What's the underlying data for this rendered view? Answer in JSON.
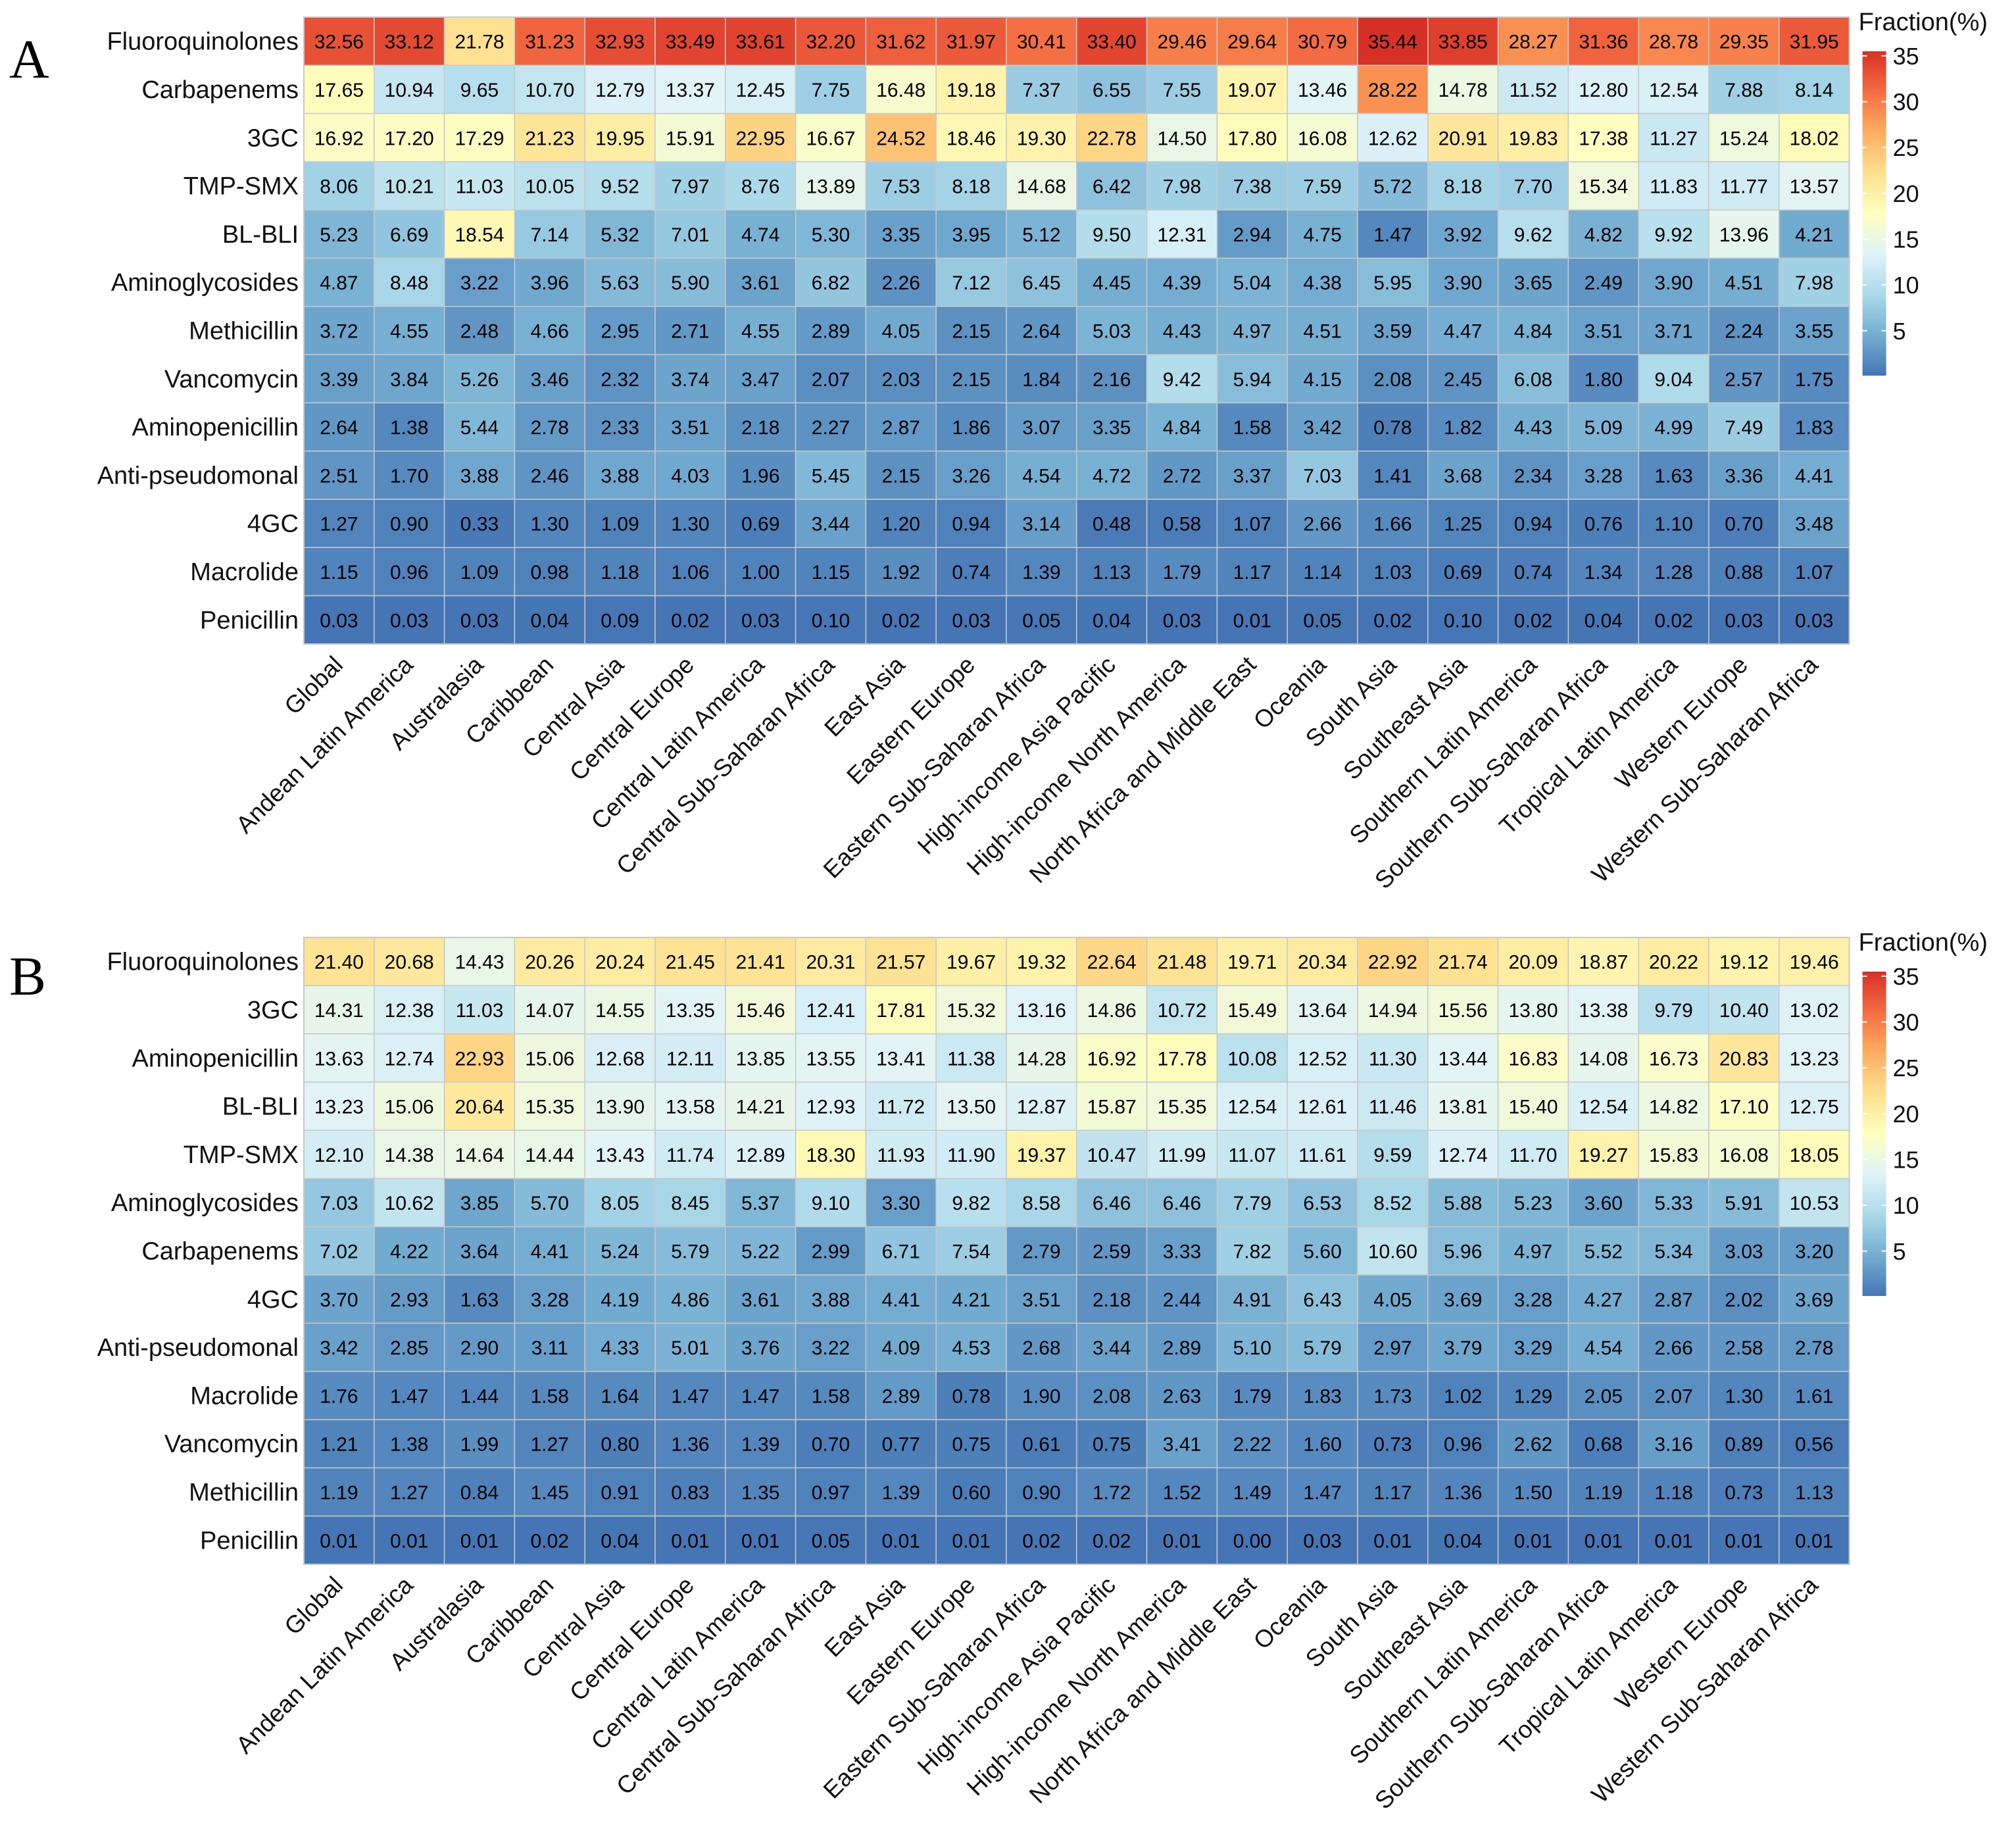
{
  "chart_data": [
    {
      "type": "heatmap",
      "panel": "A",
      "title": "",
      "legend_title": "Fraction(%)",
      "legend_ticks": [
        35,
        30,
        25,
        20,
        15,
        10,
        5
      ],
      "color_range": [
        0,
        35
      ],
      "rows": [
        "Fluoroquinolones",
        "Carbapenems",
        "3GC",
        "TMP-SMX",
        "BL-BLI",
        "Aminoglycosides",
        "Methicillin",
        "Vancomycin",
        "Aminopenicillin",
        "Anti-pseudomonal",
        "4GC",
        "Macrolide",
        "Penicillin"
      ],
      "columns": [
        "Global",
        "Andean Latin America",
        "Australasia",
        "Caribbean",
        "Central Asia",
        "Central Europe",
        "Central Latin America",
        "Central Sub-Saharan Africa",
        "East Asia",
        "Eastern Europe",
        "Eastern Sub-Saharan Africa",
        "High-income Asia Pacific",
        "High-income North America",
        "North Africa and Middle East",
        "Oceania",
        "South Asia",
        "Southeast Asia",
        "Southern Latin America",
        "Southern Sub-Saharan Africa",
        "Tropical Latin America",
        "Western Europe",
        "Western Sub-Saharan Africa"
      ],
      "values": [
        [
          "32.56",
          "33.12",
          "21.78",
          "31.23",
          "32.93",
          "33.49",
          "33.61",
          "32.20",
          "31.62",
          "31.97",
          "30.41",
          "33.40",
          "29.46",
          "29.64",
          "30.79",
          "35.44",
          "33.85",
          "28.27",
          "31.36",
          "28.78",
          "29.35",
          "31.95"
        ],
        [
          "17.65",
          "10.94",
          "9.65",
          "10.70",
          "12.79",
          "13.37",
          "12.45",
          "7.75",
          "16.48",
          "19.18",
          "7.37",
          "6.55",
          "7.55",
          "19.07",
          "13.46",
          "28.22",
          "14.78",
          "11.52",
          "12.80",
          "12.54",
          "7.88",
          "8.14"
        ],
        [
          "16.92",
          "17.20",
          "17.29",
          "21.23",
          "19.95",
          "15.91",
          "22.95",
          "16.67",
          "24.52",
          "18.46",
          "19.30",
          "22.78",
          "14.50",
          "17.80",
          "16.08",
          "12.62",
          "20.91",
          "19.83",
          "17.38",
          "11.27",
          "15.24",
          "18.02"
        ],
        [
          "8.06",
          "10.21",
          "11.03",
          "10.05",
          "9.52",
          "7.97",
          "8.76",
          "13.89",
          "7.53",
          "8.18",
          "14.68",
          "6.42",
          "7.98",
          "7.38",
          "7.59",
          "5.72",
          "8.18",
          "7.70",
          "15.34",
          "11.83",
          "11.77",
          "13.57"
        ],
        [
          "5.23",
          "6.69",
          "18.54",
          "7.14",
          "5.32",
          "7.01",
          "4.74",
          "5.30",
          "3.35",
          "3.95",
          "5.12",
          "9.50",
          "12.31",
          "2.94",
          "4.75",
          "1.47",
          "3.92",
          "9.62",
          "4.82",
          "9.92",
          "13.96",
          "4.21"
        ],
        [
          "4.87",
          "8.48",
          "3.22",
          "3.96",
          "5.63",
          "5.90",
          "3.61",
          "6.82",
          "2.26",
          "7.12",
          "6.45",
          "4.45",
          "4.39",
          "5.04",
          "4.38",
          "5.95",
          "3.90",
          "3.65",
          "2.49",
          "3.90",
          "4.51",
          "7.98"
        ],
        [
          "3.72",
          "4.55",
          "2.48",
          "4.66",
          "2.95",
          "2.71",
          "4.55",
          "2.89",
          "4.05",
          "2.15",
          "2.64",
          "5.03",
          "4.43",
          "4.97",
          "4.51",
          "3.59",
          "4.47",
          "4.84",
          "3.51",
          "3.71",
          "2.24",
          "3.55"
        ],
        [
          "3.39",
          "3.84",
          "5.26",
          "3.46",
          "2.32",
          "3.74",
          "3.47",
          "2.07",
          "2.03",
          "2.15",
          "1.84",
          "2.16",
          "9.42",
          "5.94",
          "4.15",
          "2.08",
          "2.45",
          "6.08",
          "1.80",
          "9.04",
          "2.57",
          "1.75"
        ],
        [
          "2.64",
          "1.38",
          "5.44",
          "2.78",
          "2.33",
          "3.51",
          "2.18",
          "2.27",
          "2.87",
          "1.86",
          "3.07",
          "3.35",
          "4.84",
          "1.58",
          "3.42",
          "0.78",
          "1.82",
          "4.43",
          "5.09",
          "4.99",
          "7.49",
          "1.83"
        ],
        [
          "2.51",
          "1.70",
          "3.88",
          "2.46",
          "3.88",
          "4.03",
          "1.96",
          "5.45",
          "2.15",
          "3.26",
          "4.54",
          "4.72",
          "2.72",
          "3.37",
          "7.03",
          "1.41",
          "3.68",
          "2.34",
          "3.28",
          "1.63",
          "3.36",
          "4.41"
        ],
        [
          "1.27",
          "0.90",
          "0.33",
          "1.30",
          "1.09",
          "1.30",
          "0.69",
          "3.44",
          "1.20",
          "0.94",
          "3.14",
          "0.48",
          "0.58",
          "1.07",
          "2.66",
          "1.66",
          "1.25",
          "0.94",
          "0.76",
          "1.10",
          "0.70",
          "3.48"
        ],
        [
          "1.15",
          "0.96",
          "1.09",
          "0.98",
          "1.18",
          "1.06",
          "1.00",
          "1.15",
          "1.92",
          "0.74",
          "1.39",
          "1.13",
          "1.79",
          "1.17",
          "1.14",
          "1.03",
          "0.69",
          "0.74",
          "1.34",
          "1.28",
          "0.88",
          "1.07"
        ],
        [
          "0.03",
          "0.03",
          "0.03",
          "0.04",
          "0.09",
          "0.02",
          "0.03",
          "0.10",
          "0.02",
          "0.03",
          "0.05",
          "0.04",
          "0.03",
          "0.01",
          "0.05",
          "0.02",
          "0.10",
          "0.02",
          "0.04",
          "0.02",
          "0.03",
          "0.03"
        ]
      ]
    },
    {
      "type": "heatmap",
      "panel": "B",
      "title": "",
      "legend_title": "Fraction(%)",
      "legend_ticks": [
        35,
        30,
        25,
        20,
        15,
        10,
        5
      ],
      "color_range": [
        0,
        35
      ],
      "rows": [
        "Fluoroquinolones",
        "3GC",
        "Aminopenicillin",
        "BL-BLI",
        "TMP-SMX",
        "Aminoglycosides",
        "Carbapenems",
        "4GC",
        "Anti-pseudomonal",
        "Macrolide",
        "Vancomycin",
        "Methicillin",
        "Penicillin"
      ],
      "columns": [
        "Global",
        "Andean Latin America",
        "Australasia",
        "Caribbean",
        "Central Asia",
        "Central Europe",
        "Central Latin America",
        "Central Sub-Saharan Africa",
        "East Asia",
        "Eastern Europe",
        "Eastern Sub-Saharan Africa",
        "High-income Asia Pacific",
        "High-income North America",
        "North Africa and Middle East",
        "Oceania",
        "South Asia",
        "Southeast Asia",
        "Southern Latin America",
        "Southern Sub-Saharan Africa",
        "Tropical Latin America",
        "Western Europe",
        "Western Sub-Saharan Africa"
      ],
      "values": [
        [
          "21.40",
          "20.68",
          "14.43",
          "20.26",
          "20.24",
          "21.45",
          "21.41",
          "20.31",
          "21.57",
          "19.67",
          "19.32",
          "22.64",
          "21.48",
          "19.71",
          "20.34",
          "22.92",
          "21.74",
          "20.09",
          "18.87",
          "20.22",
          "19.12",
          "19.46"
        ],
        [
          "14.31",
          "12.38",
          "11.03",
          "14.07",
          "14.55",
          "13.35",
          "15.46",
          "12.41",
          "17.81",
          "15.32",
          "13.16",
          "14.86",
          "10.72",
          "15.49",
          "13.64",
          "14.94",
          "15.56",
          "13.80",
          "13.38",
          "9.79",
          "10.40",
          "13.02"
        ],
        [
          "13.63",
          "12.74",
          "22.93",
          "15.06",
          "12.68",
          "12.11",
          "13.85",
          "13.55",
          "13.41",
          "11.38",
          "14.28",
          "16.92",
          "17.78",
          "10.08",
          "12.52",
          "11.30",
          "13.44",
          "16.83",
          "14.08",
          "16.73",
          "20.83",
          "13.23"
        ],
        [
          "13.23",
          "15.06",
          "20.64",
          "15.35",
          "13.90",
          "13.58",
          "14.21",
          "12.93",
          "11.72",
          "13.50",
          "12.87",
          "15.87",
          "15.35",
          "12.54",
          "12.61",
          "11.46",
          "13.81",
          "15.40",
          "12.54",
          "14.82",
          "17.10",
          "12.75"
        ],
        [
          "12.10",
          "14.38",
          "14.64",
          "14.44",
          "13.43",
          "11.74",
          "12.89",
          "18.30",
          "11.93",
          "11.90",
          "19.37",
          "10.47",
          "11.99",
          "11.07",
          "11.61",
          "9.59",
          "12.74",
          "11.70",
          "19.27",
          "15.83",
          "16.08",
          "18.05"
        ],
        [
          "7.03",
          "10.62",
          "3.85",
          "5.70",
          "8.05",
          "8.45",
          "5.37",
          "9.10",
          "3.30",
          "9.82",
          "8.58",
          "6.46",
          "6.46",
          "7.79",
          "6.53",
          "8.52",
          "5.88",
          "5.23",
          "3.60",
          "5.33",
          "5.91",
          "10.53"
        ],
        [
          "7.02",
          "4.22",
          "3.64",
          "4.41",
          "5.24",
          "5.79",
          "5.22",
          "2.99",
          "6.71",
          "7.54",
          "2.79",
          "2.59",
          "3.33",
          "7.82",
          "5.60",
          "10.60",
          "5.96",
          "4.97",
          "5.52",
          "5.34",
          "3.03",
          "3.20"
        ],
        [
          "3.70",
          "2.93",
          "1.63",
          "3.28",
          "4.19",
          "4.86",
          "3.61",
          "3.88",
          "4.41",
          "4.21",
          "3.51",
          "2.18",
          "2.44",
          "4.91",
          "6.43",
          "4.05",
          "3.69",
          "3.28",
          "4.27",
          "2.87",
          "2.02",
          "3.69"
        ],
        [
          "3.42",
          "2.85",
          "2.90",
          "3.11",
          "4.33",
          "5.01",
          "3.76",
          "3.22",
          "4.09",
          "4.53",
          "2.68",
          "3.44",
          "2.89",
          "5.10",
          "5.79",
          "2.97",
          "3.79",
          "3.29",
          "4.54",
          "2.66",
          "2.58",
          "2.78"
        ],
        [
          "1.76",
          "1.47",
          "1.44",
          "1.58",
          "1.64",
          "1.47",
          "1.47",
          "1.58",
          "2.89",
          "0.78",
          "1.90",
          "2.08",
          "2.63",
          "1.79",
          "1.83",
          "1.73",
          "1.02",
          "1.29",
          "2.05",
          "2.07",
          "1.30",
          "1.61"
        ],
        [
          "1.21",
          "1.38",
          "1.99",
          "1.27",
          "0.80",
          "1.36",
          "1.39",
          "0.70",
          "0.77",
          "0.75",
          "0.61",
          "0.75",
          "3.41",
          "2.22",
          "1.60",
          "0.73",
          "0.96",
          "2.62",
          "0.68",
          "3.16",
          "0.89",
          "0.56"
        ],
        [
          "1.19",
          "1.27",
          "0.84",
          "1.45",
          "0.91",
          "0.83",
          "1.35",
          "0.97",
          "1.39",
          "0.60",
          "0.90",
          "1.72",
          "1.52",
          "1.49",
          "1.47",
          "1.17",
          "1.36",
          "1.50",
          "1.19",
          "1.18",
          "0.73",
          "1.13"
        ],
        [
          "0.01",
          "0.01",
          "0.01",
          "0.02",
          "0.04",
          "0.01",
          "0.01",
          "0.05",
          "0.01",
          "0.01",
          "0.02",
          "0.02",
          "0.01",
          "0.00",
          "0.03",
          "0.01",
          "0.04",
          "0.01",
          "0.01",
          "0.01",
          "0.01",
          "0.01"
        ]
      ]
    }
  ],
  "colors": {
    "scale": [
      "#4575b4",
      "#74add1",
      "#abd9e9",
      "#e0f3f8",
      "#ffffbf",
      "#fee090",
      "#fdae61",
      "#f46d43",
      "#d73027"
    ],
    "grid_line": "#c8c8c8",
    "panel_border": "#c8c8c8"
  }
}
